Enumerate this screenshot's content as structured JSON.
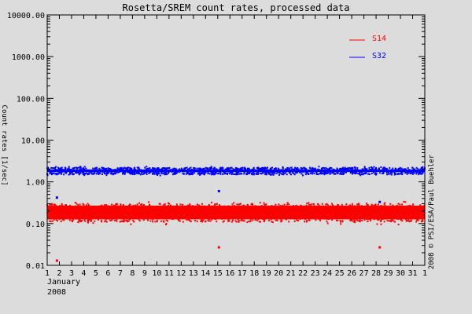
{
  "chart_data": {
    "type": "scatter",
    "title": "Rosetta/SREM count rates, processed data",
    "xlabel": "January 2008",
    "ylabel": "Count rates [1/sec]",
    "yscale": "log",
    "ylim": [
      0.01,
      10000
    ],
    "xlim": [
      1,
      32
    ],
    "y_ticks": [
      "10000.00",
      "1000.00",
      "100.00",
      "10.00",
      "1.00",
      "0.10",
      "0.01"
    ],
    "x_ticks": [
      "1",
      "2",
      "3",
      "4",
      "5",
      "6",
      "7",
      "8",
      "9",
      "10",
      "11",
      "12",
      "13",
      "14",
      "15",
      "16",
      "17",
      "18",
      "19",
      "20",
      "21",
      "22",
      "23",
      "24",
      "25",
      "26",
      "27",
      "28",
      "29",
      "30",
      "31",
      "1"
    ],
    "x_sublabel_month": "January",
    "x_sublabel_year": "2008",
    "grid": false,
    "legend_position": "upper-right-inside",
    "series": [
      {
        "name": "S14",
        "color": "#ff0000",
        "typical_value": 0.2,
        "band_low": 0.11,
        "band_high": 0.3,
        "outliers": [
          {
            "x": 1.8,
            "y": 0.013
          },
          {
            "x": 15.1,
            "y": 0.027
          },
          {
            "x": 28.3,
            "y": 0.027
          }
        ]
      },
      {
        "name": "S32",
        "color": "#0000ff",
        "typical_value": 1.8,
        "band_low": 1.5,
        "band_high": 2.2,
        "outliers": [
          {
            "x": 1.8,
            "y": 0.42
          },
          {
            "x": 15.1,
            "y": 0.6
          },
          {
            "x": 28.3,
            "y": 0.33
          }
        ]
      }
    ],
    "credit": "2008 © PSI/ESA/Paul Buehler"
  }
}
